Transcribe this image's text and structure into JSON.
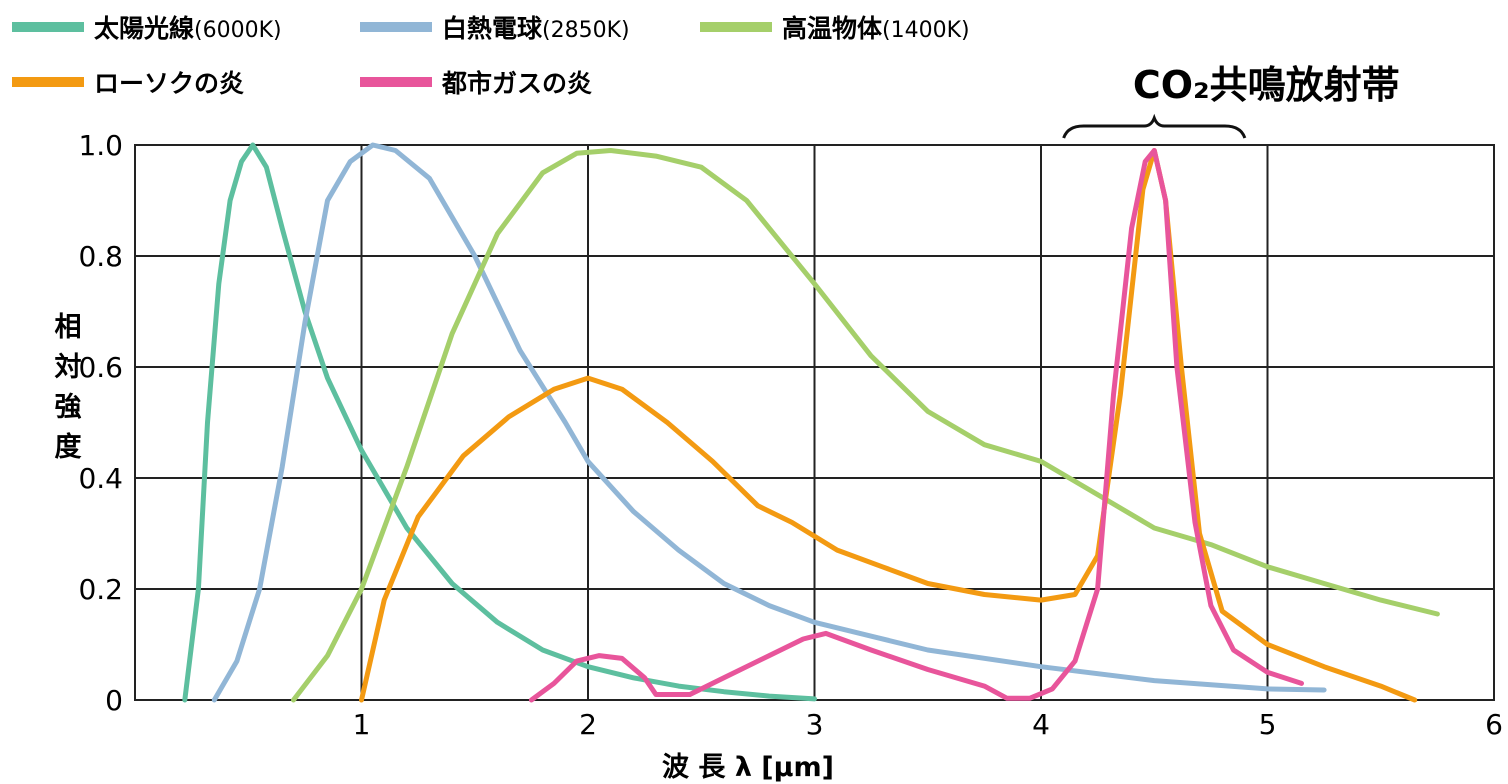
{
  "chart_data": {
    "type": "line",
    "title": "",
    "xlabel": "波 長 λ [μm]",
    "ylabel": "相対強度",
    "xlim": [
      0,
      6
    ],
    "ylim": [
      0,
      1.0
    ],
    "x_ticks": [
      "1",
      "2",
      "3",
      "4",
      "5",
      "6"
    ],
    "y_ticks": [
      "0",
      "0.2",
      "0.4",
      "0.6",
      "0.8",
      "1.0"
    ],
    "grid": true,
    "legend_position": "top-left",
    "annotation": {
      "text": "CO₂共鳴放射帯",
      "x_range": [
        4.1,
        4.9
      ]
    },
    "series": [
      {
        "name": "太陽光線",
        "name_suffix": "(6000K)",
        "color": "#5dbf9f",
        "points": [
          [
            0.22,
            0
          ],
          [
            0.28,
            0.2
          ],
          [
            0.32,
            0.5
          ],
          [
            0.37,
            0.75
          ],
          [
            0.42,
            0.9
          ],
          [
            0.47,
            0.97
          ],
          [
            0.52,
            1.0
          ],
          [
            0.58,
            0.96
          ],
          [
            0.65,
            0.85
          ],
          [
            0.75,
            0.7
          ],
          [
            0.85,
            0.58
          ],
          [
            1.0,
            0.45
          ],
          [
            1.2,
            0.31
          ],
          [
            1.4,
            0.21
          ],
          [
            1.6,
            0.14
          ],
          [
            1.8,
            0.09
          ],
          [
            2.0,
            0.06
          ],
          [
            2.2,
            0.04
          ],
          [
            2.4,
            0.025
          ],
          [
            2.6,
            0.015
          ],
          [
            2.8,
            0.007
          ],
          [
            3.0,
            0.002
          ]
        ]
      },
      {
        "name": "白熱電球",
        "name_suffix": "(2850K)",
        "color": "#91b6d6",
        "points": [
          [
            0.35,
            0
          ],
          [
            0.45,
            0.07
          ],
          [
            0.55,
            0.2
          ],
          [
            0.65,
            0.42
          ],
          [
            0.75,
            0.68
          ],
          [
            0.85,
            0.9
          ],
          [
            0.95,
            0.97
          ],
          [
            1.05,
            1.0
          ],
          [
            1.15,
            0.99
          ],
          [
            1.3,
            0.94
          ],
          [
            1.5,
            0.8
          ],
          [
            1.7,
            0.63
          ],
          [
            1.9,
            0.5
          ],
          [
            2.0,
            0.43
          ],
          [
            2.2,
            0.34
          ],
          [
            2.4,
            0.27
          ],
          [
            2.6,
            0.21
          ],
          [
            2.8,
            0.17
          ],
          [
            3.0,
            0.14
          ],
          [
            3.5,
            0.09
          ],
          [
            4.0,
            0.06
          ],
          [
            4.5,
            0.035
          ],
          [
            5.0,
            0.02
          ],
          [
            5.25,
            0.018
          ]
        ]
      },
      {
        "name": "高温物体",
        "name_suffix": "(1400K)",
        "color": "#a5cf6a",
        "points": [
          [
            0.7,
            0
          ],
          [
            0.85,
            0.08
          ],
          [
            1.0,
            0.2
          ],
          [
            1.2,
            0.42
          ],
          [
            1.4,
            0.66
          ],
          [
            1.6,
            0.84
          ],
          [
            1.8,
            0.95
          ],
          [
            1.95,
            0.985
          ],
          [
            2.1,
            0.99
          ],
          [
            2.3,
            0.98
          ],
          [
            2.5,
            0.96
          ],
          [
            2.7,
            0.9
          ],
          [
            3.0,
            0.75
          ],
          [
            3.25,
            0.62
          ],
          [
            3.5,
            0.52
          ],
          [
            3.75,
            0.46
          ],
          [
            4.0,
            0.43
          ],
          [
            4.25,
            0.37
          ],
          [
            4.5,
            0.31
          ],
          [
            4.75,
            0.28
          ],
          [
            5.0,
            0.24
          ],
          [
            5.25,
            0.21
          ],
          [
            5.5,
            0.18
          ],
          [
            5.75,
            0.155
          ]
        ]
      },
      {
        "name": "ローソクの炎",
        "name_suffix": "",
        "color": "#f39a12",
        "points": [
          [
            1.0,
            0
          ],
          [
            1.1,
            0.18
          ],
          [
            1.25,
            0.33
          ],
          [
            1.45,
            0.44
          ],
          [
            1.65,
            0.51
          ],
          [
            1.85,
            0.56
          ],
          [
            2.0,
            0.58
          ],
          [
            2.15,
            0.56
          ],
          [
            2.35,
            0.5
          ],
          [
            2.55,
            0.43
          ],
          [
            2.75,
            0.35
          ],
          [
            2.9,
            0.32
          ],
          [
            3.1,
            0.27
          ],
          [
            3.3,
            0.24
          ],
          [
            3.5,
            0.21
          ],
          [
            3.75,
            0.19
          ],
          [
            4.0,
            0.18
          ],
          [
            4.15,
            0.19
          ],
          [
            4.25,
            0.26
          ],
          [
            4.35,
            0.55
          ],
          [
            4.45,
            0.92
          ],
          [
            4.5,
            0.99
          ],
          [
            4.55,
            0.9
          ],
          [
            4.62,
            0.6
          ],
          [
            4.7,
            0.3
          ],
          [
            4.8,
            0.16
          ],
          [
            5.0,
            0.1
          ],
          [
            5.25,
            0.06
          ],
          [
            5.5,
            0.025
          ],
          [
            5.65,
            0
          ]
        ]
      },
      {
        "name": "都市ガスの炎",
        "name_suffix": "",
        "color": "#e8559b",
        "points": [
          [
            1.75,
            0
          ],
          [
            1.85,
            0.03
          ],
          [
            1.95,
            0.07
          ],
          [
            2.05,
            0.08
          ],
          [
            2.15,
            0.075
          ],
          [
            2.25,
            0.04
          ],
          [
            2.3,
            0.01
          ],
          [
            2.45,
            0.01
          ],
          [
            2.6,
            0.04
          ],
          [
            2.8,
            0.08
          ],
          [
            2.95,
            0.11
          ],
          [
            3.05,
            0.12
          ],
          [
            3.25,
            0.09
          ],
          [
            3.5,
            0.055
          ],
          [
            3.75,
            0.025
          ],
          [
            3.85,
            0.003
          ],
          [
            3.95,
            0.003
          ],
          [
            4.05,
            0.02
          ],
          [
            4.15,
            0.07
          ],
          [
            4.25,
            0.2
          ],
          [
            4.32,
            0.55
          ],
          [
            4.4,
            0.85
          ],
          [
            4.46,
            0.97
          ],
          [
            4.5,
            0.99
          ],
          [
            4.55,
            0.9
          ],
          [
            4.6,
            0.6
          ],
          [
            4.68,
            0.32
          ],
          [
            4.75,
            0.17
          ],
          [
            4.85,
            0.09
          ],
          [
            5.0,
            0.05
          ],
          [
            5.15,
            0.03
          ]
        ]
      }
    ]
  }
}
